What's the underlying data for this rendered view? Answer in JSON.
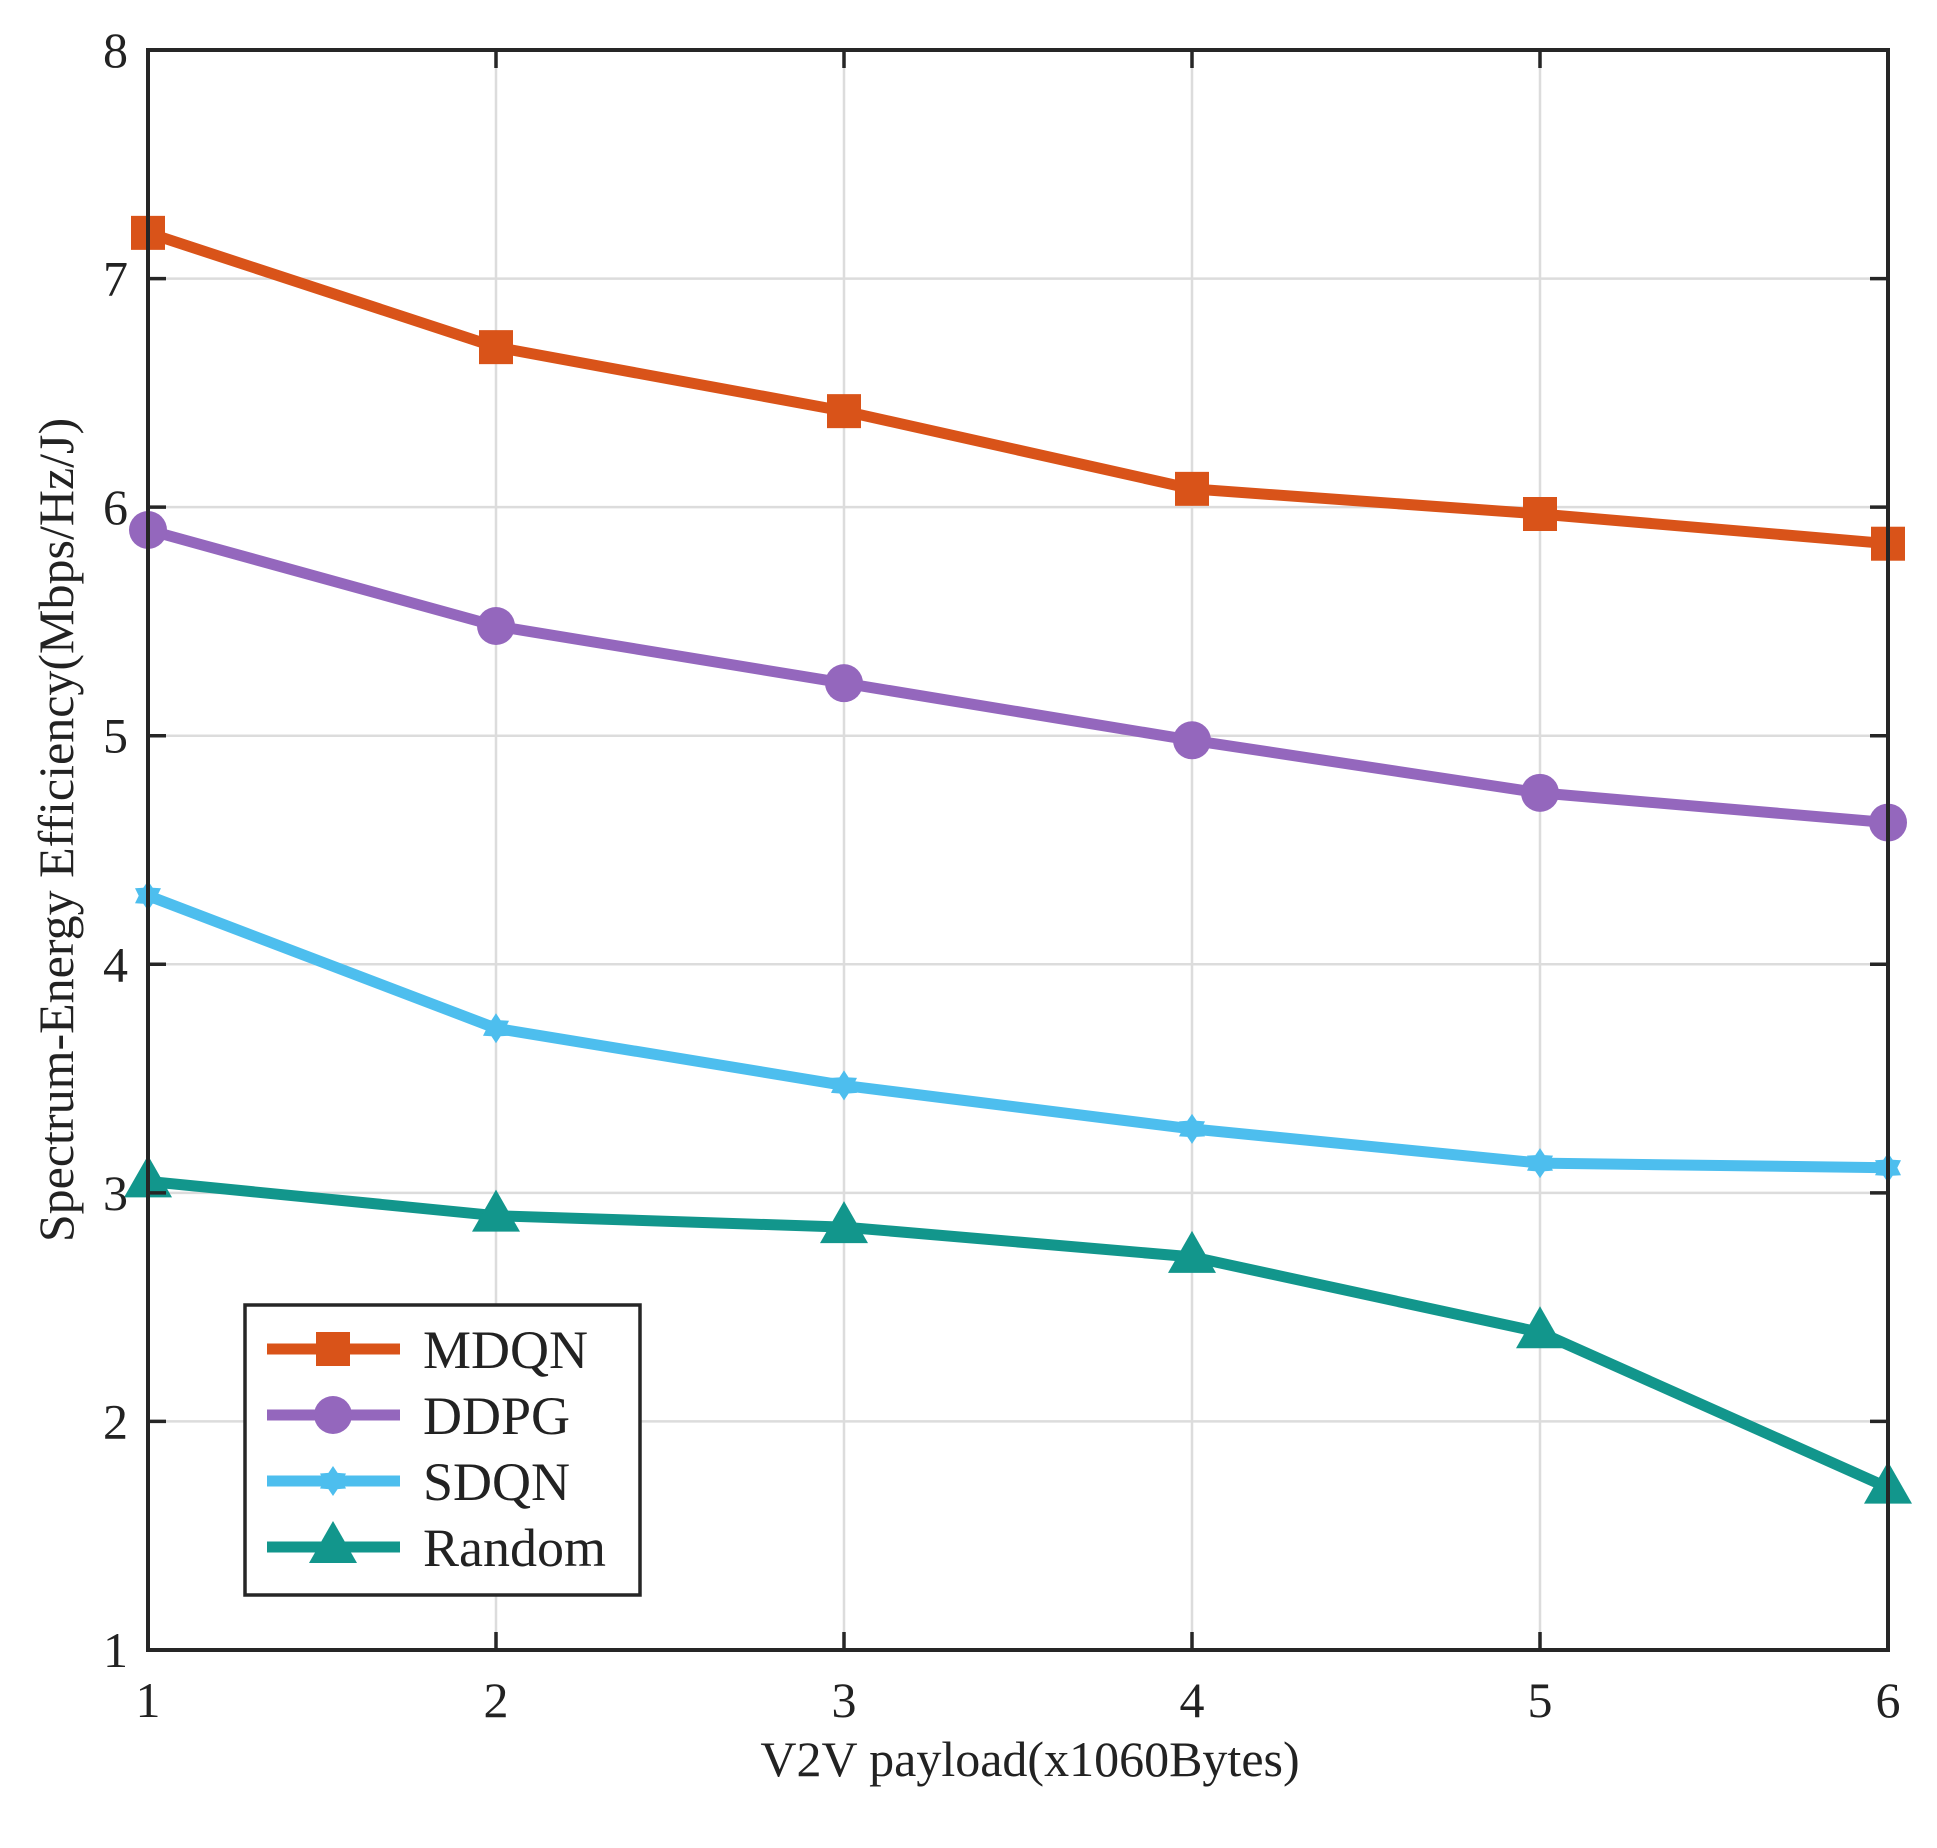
{
  "chart_data": {
    "type": "line",
    "title": "",
    "xlabel": "V2V payload(x1060Bytes)",
    "ylabel": "Spectrum-Energy Efficiency(Mbps/Hz/J)",
    "x": [
      1,
      2,
      3,
      4,
      5,
      6
    ],
    "xlim": [
      1,
      6
    ],
    "ylim": [
      1,
      8
    ],
    "xticks": [
      "1",
      "2",
      "3",
      "4",
      "5",
      "6"
    ],
    "yticks": [
      "1",
      "2",
      "3",
      "4",
      "5",
      "6",
      "7",
      "8"
    ],
    "grid": true,
    "legend_position": "bottom-left",
    "series": [
      {
        "name": "MDQN",
        "values": [
          7.2,
          6.7,
          6.42,
          6.08,
          5.97,
          5.84
        ],
        "color": "#d95319",
        "marker": "square"
      },
      {
        "name": "DDPG",
        "values": [
          5.9,
          5.48,
          5.23,
          4.98,
          4.75,
          4.62
        ],
        "color": "#9467bd",
        "marker": "circle"
      },
      {
        "name": "SDQN",
        "values": [
          4.3,
          3.72,
          3.47,
          3.28,
          3.13,
          3.11
        ],
        "color": "#4dbeee",
        "marker": "hexagram"
      },
      {
        "name": "Random",
        "values": [
          3.05,
          2.9,
          2.85,
          2.72,
          2.39,
          1.71
        ],
        "color": "#12968c",
        "marker": "triangle"
      }
    ]
  }
}
